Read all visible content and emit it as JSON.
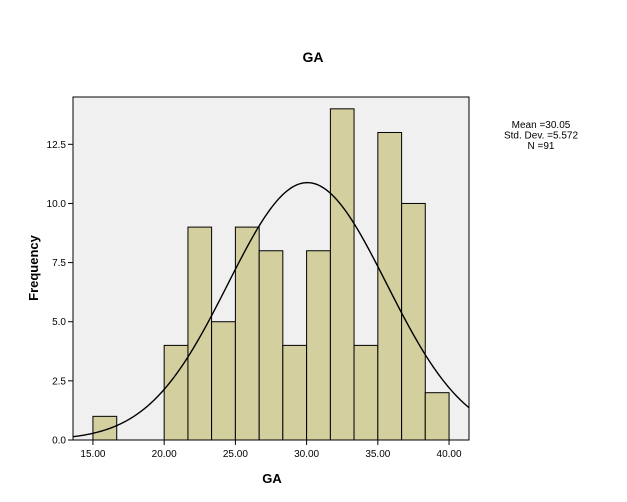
{
  "chart_data": {
    "type": "bar",
    "title": "GA",
    "xlabel": "GA",
    "ylabel": "Frequency",
    "bin_width": 1.67,
    "bins": [
      {
        "start": 15.0,
        "end": 16.67,
        "count": 1
      },
      {
        "start": 20.0,
        "end": 21.67,
        "count": 4
      },
      {
        "start": 21.67,
        "end": 23.33,
        "count": 9
      },
      {
        "start": 23.33,
        "end": 25.0,
        "count": 5
      },
      {
        "start": 25.0,
        "end": 26.67,
        "count": 9
      },
      {
        "start": 26.67,
        "end": 28.33,
        "count": 8
      },
      {
        "start": 28.33,
        "end": 30.0,
        "count": 4
      },
      {
        "start": 30.0,
        "end": 31.67,
        "count": 8
      },
      {
        "start": 31.67,
        "end": 33.33,
        "count": 14
      },
      {
        "start": 33.33,
        "end": 35.0,
        "count": 4
      },
      {
        "start": 35.0,
        "end": 36.67,
        "count": 13
      },
      {
        "start": 36.67,
        "end": 38.33,
        "count": 10
      },
      {
        "start": 38.33,
        "end": 40.0,
        "count": 2
      }
    ],
    "x_ticks": [
      15.0,
      20.0,
      25.0,
      30.0,
      35.0,
      40.0
    ],
    "x_tick_labels": [
      "15.00",
      "20.00",
      "25.00",
      "30.00",
      "35.00",
      "40.00"
    ],
    "y_ticks": [
      0,
      2.5,
      5.0,
      7.5,
      10.0,
      12.5
    ],
    "y_tick_labels": [
      "0.0",
      "2.5",
      "5.0",
      "7.5",
      "10.0",
      "12.5"
    ],
    "xlim": [
      13.6,
      41.4
    ],
    "ylim": [
      0,
      14.5
    ],
    "normal_curve": {
      "mean": 30.05,
      "std": 5.572,
      "n": 91
    },
    "stats_lines": [
      "Mean =30.05",
      "Std. Dev. =5.572",
      "N =91"
    ],
    "colors": {
      "bar_fill": "#d4cf9e",
      "bar_stroke": "#000000",
      "plot_background": "#f0f0f0",
      "curve": "#000000"
    },
    "grid": false
  }
}
